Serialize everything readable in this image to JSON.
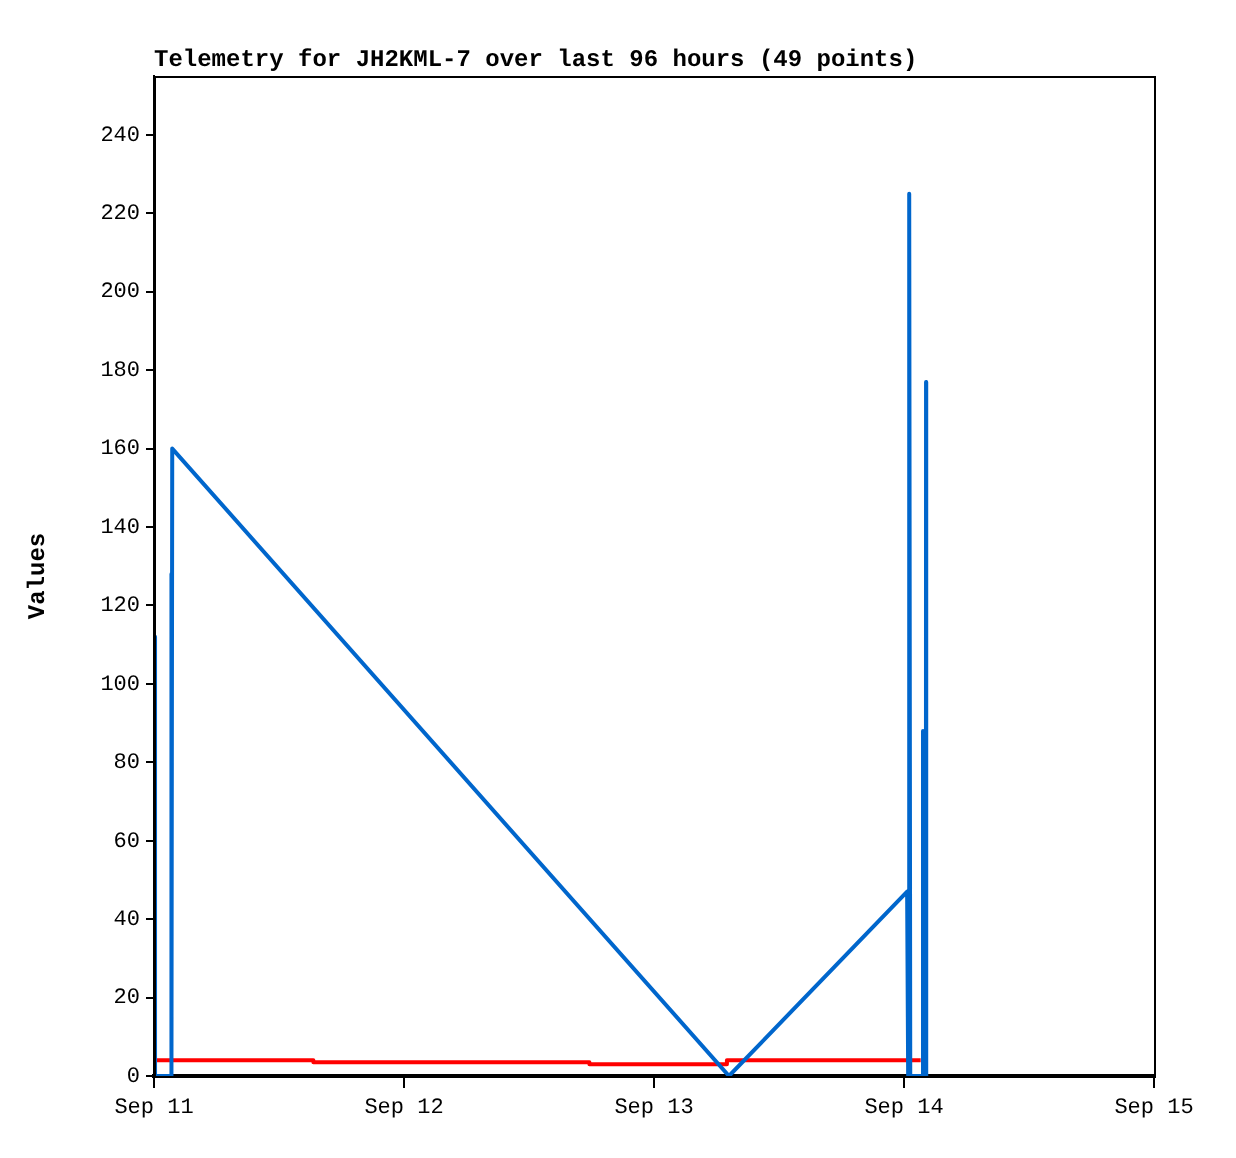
{
  "chart_data": {
    "type": "line",
    "title": "Telemetry for JH2KML-7 over last 96 hours (49 points)",
    "ylabel": "Values",
    "xlim": [
      "--09-11",
      "--09-15"
    ],
    "xticks": [
      {
        "value": "--09-11",
        "label": "Sep 11"
      },
      {
        "value": "--09-12",
        "label": "Sep 12"
      },
      {
        "value": "--09-13",
        "label": "Sep 13"
      },
      {
        "value": "--09-14",
        "label": "Sep 14"
      },
      {
        "value": "--09-15",
        "label": "Sep 15"
      }
    ],
    "ylim": [
      0,
      255
    ],
    "yticks": [
      0,
      20,
      40,
      60,
      80,
      100,
      120,
      140,
      160,
      180,
      200,
      220,
      240
    ],
    "grid": false,
    "legend": false,
    "marker": "none",
    "line_style": "solid",
    "series": [
      {
        "color": "#0066cc",
        "x": [
          "--09-11T00:01",
          "--09-11T00:06",
          "--09-11T01:36",
          "--09-11T01:39",
          "--09-11T01:42",
          "--09-11T01:45",
          "--09-13T07:12",
          "--09-14T00:18",
          "--09-14T00:24",
          "--09-14T00:30",
          "--09-14T00:36",
          "--09-14T01:48",
          "--09-14T01:49",
          "--09-14T01:50",
          "--09-14T02:06",
          "--09-14T02:07",
          "--09-14T02:08"
        ],
        "values": [
          112,
          0,
          0,
          128,
          0,
          160,
          0,
          47,
          0,
          225,
          0,
          0,
          88,
          0,
          0,
          177,
          0
        ]
      },
      {
        "color": "#ff0000",
        "x": [
          "--09-11T00:00",
          "--09-11T15:18",
          "--09-11T15:18",
          "--09-12T17:48",
          "--09-12T17:48",
          "--09-13T07:00",
          "--09-13T07:00",
          "--09-14T01:36"
        ],
        "values": [
          4,
          4,
          3.5,
          3.5,
          3,
          3,
          4,
          4
        ]
      }
    ]
  }
}
